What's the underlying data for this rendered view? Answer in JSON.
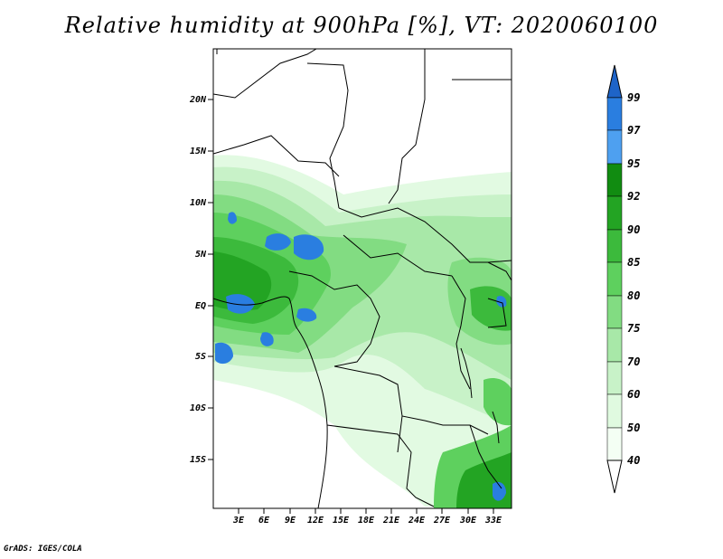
{
  "title": "Relative humidity at 900hPa [%], VT: 2020060100",
  "credit": "GrADS: IGES/COLA",
  "map": {
    "lat_labels": [
      "20N",
      "15N",
      "10N",
      "5N",
      "EQ",
      "5S",
      "10S",
      "15S"
    ],
    "lon_labels": [
      "3E",
      "6E",
      "9E",
      "12E",
      "15E",
      "18E",
      "21E",
      "24E",
      "27E",
      "30E",
      "33E"
    ]
  },
  "colorbar": {
    "levels": [
      "99",
      "97",
      "95",
      "92",
      "90",
      "85",
      "80",
      "75",
      "70",
      "60",
      "50",
      "40"
    ],
    "colors": [
      "#1e64c8",
      "#2a7ee0",
      "#4ea0f0",
      "#118c11",
      "#23a423",
      "#3cba3c",
      "#5ed05e",
      "#82dc82",
      "#a8e8a8",
      "#c8f2c8",
      "#e0fae0",
      "#f4fff4",
      "#ffffff"
    ]
  },
  "colors": {
    "border": "#000000",
    "background": "#ffffff"
  }
}
